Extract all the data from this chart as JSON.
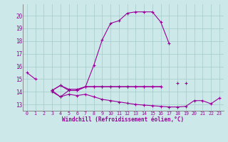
{
  "xlabel": "Windchill (Refroidissement éolien,°C)",
  "background_color": "#cde8e8",
  "grid_color": "#aacece",
  "line_color": "#990099",
  "hours": [
    0,
    1,
    2,
    3,
    4,
    5,
    6,
    7,
    8,
    9,
    10,
    11,
    12,
    13,
    14,
    15,
    16,
    17,
    18,
    19,
    20,
    21,
    22,
    23
  ],
  "series1": [
    15.5,
    15.0,
    null,
    null,
    null,
    null,
    null,
    null,
    null,
    null,
    null,
    null,
    null,
    null,
    null,
    null,
    null,
    null,
    null,
    null,
    null,
    null,
    null,
    null
  ],
  "series2": [
    null,
    null,
    null,
    14.1,
    13.6,
    14.1,
    14.1,
    14.4,
    16.1,
    18.1,
    19.4,
    19.6,
    20.2,
    20.3,
    20.3,
    20.3,
    19.5,
    17.8,
    null,
    null,
    null,
    null,
    null,
    null
  ],
  "series3": [
    null,
    null,
    null,
    14.1,
    14.5,
    14.1,
    14.1,
    14.4,
    14.4,
    14.4,
    14.4,
    14.4,
    14.4,
    14.4,
    14.4,
    14.4,
    14.4,
    null,
    14.7,
    null,
    null,
    null,
    null,
    null
  ],
  "series4": [
    null,
    null,
    null,
    14.1,
    14.5,
    14.2,
    14.2,
    14.4,
    14.4,
    14.4,
    14.4,
    14.4,
    14.4,
    14.4,
    14.4,
    14.4,
    14.4,
    null,
    null,
    14.7,
    null,
    null,
    null,
    null
  ],
  "series5": [
    null,
    null,
    null,
    14.0,
    13.6,
    13.8,
    13.7,
    13.8,
    13.6,
    13.4,
    13.3,
    13.2,
    13.1,
    13.0,
    12.95,
    12.9,
    12.85,
    12.8,
    12.8,
    12.85,
    13.3,
    13.3,
    13.05,
    13.5
  ],
  "ylim_min": 12.5,
  "ylim_max": 20.9,
  "yticks": [
    13,
    14,
    15,
    16,
    17,
    18,
    19,
    20
  ],
  "xticks": [
    0,
    1,
    2,
    3,
    4,
    5,
    6,
    7,
    8,
    9,
    10,
    11,
    12,
    13,
    14,
    15,
    16,
    17,
    18,
    19,
    20,
    21,
    22,
    23
  ]
}
